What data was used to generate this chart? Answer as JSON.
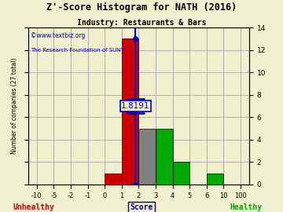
{
  "title": "Z'-Score Histogram for NATH (2016)",
  "subtitle": "Industry: Restaurants & Bars",
  "watermark_line1": "©www.textbiz.org",
  "watermark_line2": "The Research Foundation of SUNY",
  "xlabel_center": "Score",
  "xlabel_left": "Unhealthy",
  "xlabel_right": "Healthy",
  "ylabel": "Number of companies (27 total)",
  "zscore_value": 1.8191,
  "zscore_label": "1.8191",
  "bar_edges": [
    -10,
    -5,
    -2,
    -1,
    0,
    1,
    2,
    3,
    4,
    5,
    6,
    10,
    100
  ],
  "bar_heights": [
    0,
    0,
    0,
    0,
    1,
    13,
    5,
    5,
    2,
    0,
    1,
    0
  ],
  "bar_colors": [
    "#cc0000",
    "#cc0000",
    "#cc0000",
    "#cc0000",
    "#cc0000",
    "#cc0000",
    "#808080",
    "#00aa00",
    "#00aa00",
    "#00aa00",
    "#00aa00",
    "#00aa00"
  ],
  "xtick_labels": [
    "-10",
    "-5",
    "-2",
    "-1",
    "0",
    "1",
    "2",
    "3",
    "4",
    "5",
    "6",
    "10",
    "100"
  ],
  "ytick_positions": [
    0,
    2,
    4,
    6,
    8,
    10,
    12,
    14
  ],
  "ytick_labels": [
    "0",
    "2",
    "4",
    "6",
    "8",
    "10",
    "12",
    "14"
  ],
  "ylim": [
    0,
    14
  ],
  "grid_color": "#999999",
  "bg_color": "#f0f0d0",
  "bar_edge_color": "#000000",
  "title_color": "#000000",
  "subtitle_color": "#000000",
  "unhealthy_color": "#cc0000",
  "healthy_color": "#00aa00",
  "score_color": "#000080",
  "vline_color": "#0000cc",
  "annotation_bg": "#f0f0d0",
  "annotation_color": "#0000cc"
}
